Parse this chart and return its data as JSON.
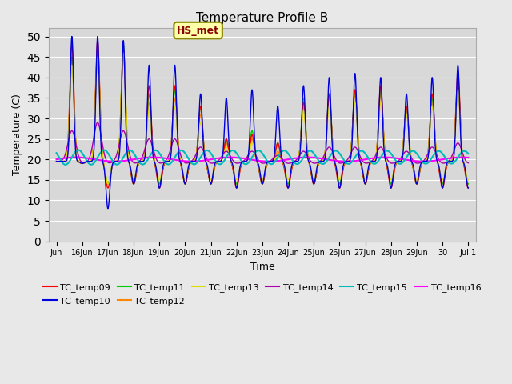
{
  "title": "Temperature Profile B",
  "xlabel": "Time",
  "ylabel": "Temperature (C)",
  "ylim": [
    0,
    52
  ],
  "yticks": [
    0,
    5,
    10,
    15,
    20,
    25,
    30,
    35,
    40,
    45,
    50
  ],
  "x_tick_labels": [
    "Jun",
    "16Jun",
    "17Jun",
    "18Jun",
    "19Jun",
    "20Jun",
    "21Jun",
    "22Jun",
    "23Jun",
    "24Jun",
    "25Jun",
    "26Jun",
    "27Jun",
    "28Jun",
    "29Jun",
    "30",
    "Jul 1"
  ],
  "series_colors": {
    "TC_temp09": "#ff0000",
    "TC_temp10": "#0000dd",
    "TC_temp11": "#00cc00",
    "TC_temp12": "#ff8800",
    "TC_temp13": "#dddd00",
    "TC_temp14": "#aa00aa",
    "TC_temp15": "#00bbbb",
    "TC_temp16": "#ff00ff"
  },
  "annotation_text": "HS_met",
  "annotation_box_color": "#ffffaa",
  "annotation_border_color": "#888800",
  "annotation_text_color": "#880000",
  "fig_bg_color": "#e8e8e8",
  "plot_bg_color": "#d8d8d8",
  "grid_color": "#ffffff"
}
